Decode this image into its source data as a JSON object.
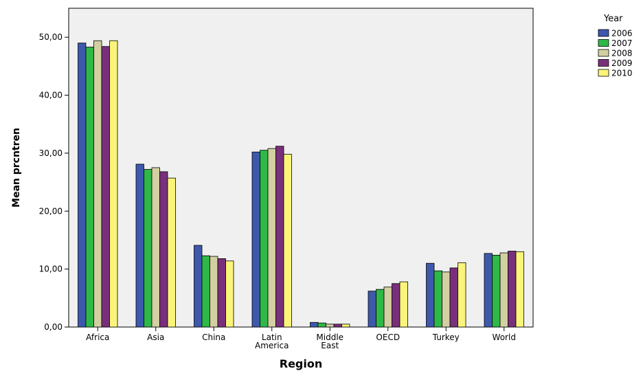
{
  "chart_data": {
    "type": "bar",
    "xlabel": "Region",
    "ylabel": "Mean prcntren",
    "ylim": [
      0,
      55
    ],
    "yticks": [
      "0,00",
      "10,00",
      "20,00",
      "30,00",
      "40,00",
      "50,00"
    ],
    "ytick_values": [
      0,
      10,
      20,
      30,
      40,
      50
    ],
    "legend_title": "Year",
    "legend_position": "top-right",
    "grid": false,
    "plot_background": "#f0f0f0",
    "categories": [
      [
        "Africa"
      ],
      [
        "Asia"
      ],
      [
        "China"
      ],
      [
        "Latin",
        "America"
      ],
      [
        "Middle",
        "East"
      ],
      [
        "OECD"
      ],
      [
        "Turkey"
      ],
      [
        "World"
      ]
    ],
    "series": [
      {
        "name": "2006",
        "color": "#3e58ac",
        "values": [
          49.0,
          28.1,
          14.1,
          30.2,
          0.8,
          6.2,
          11.0,
          12.7
        ]
      },
      {
        "name": "2007",
        "color": "#2eb848",
        "values": [
          48.3,
          27.2,
          12.3,
          30.5,
          0.7,
          6.5,
          9.7,
          12.4
        ]
      },
      {
        "name": "2008",
        "color": "#d2d0a0",
        "values": [
          49.4,
          27.5,
          12.2,
          30.8,
          0.5,
          6.9,
          9.5,
          12.8
        ]
      },
      {
        "name": "2009",
        "color": "#79307a",
        "values": [
          48.4,
          26.8,
          11.8,
          31.2,
          0.5,
          7.5,
          10.2,
          13.1
        ]
      },
      {
        "name": "2010",
        "color": "#fbf47a",
        "values": [
          49.4,
          25.7,
          11.4,
          29.8,
          0.5,
          7.8,
          11.1,
          13.0
        ]
      }
    ]
  }
}
